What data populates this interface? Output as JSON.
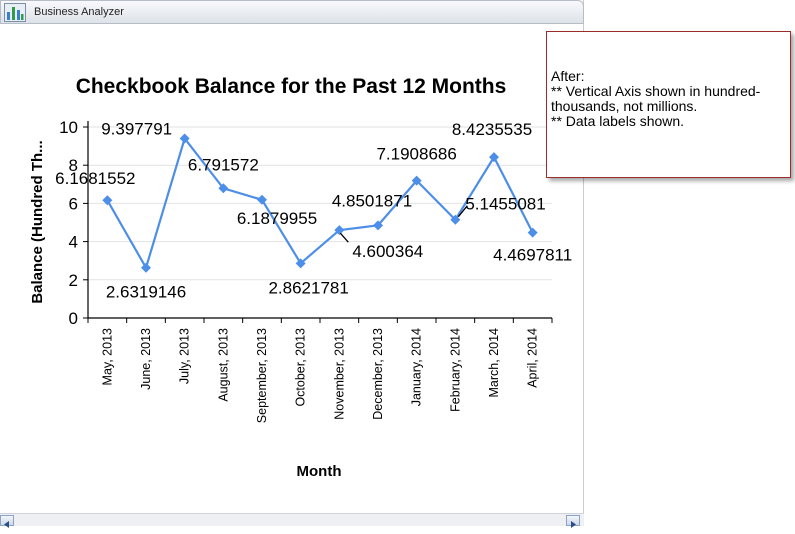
{
  "window": {
    "title": "Business Analyzer",
    "icon": "bar-chart-icon"
  },
  "note": {
    "lines": [
      "After:",
      "** Vertical Axis shown in hundred-thousands, not millions.",
      "** Data labels shown."
    ]
  },
  "chart_data": {
    "type": "line",
    "title": "Checkbook Balance for the Past 12 Months",
    "xlabel": "Month",
    "ylabel": "Balance (Hundred Th...",
    "categories": [
      "May, 2013",
      "June, 2013",
      "July, 2013",
      "August, 2013",
      "September, 2013",
      "October, 2013",
      "November, 2013",
      "December, 2013",
      "January, 2014",
      "February, 2014",
      "March, 2014",
      "April, 2014"
    ],
    "values": [
      6.1681552,
      2.6319146,
      9.397791,
      6.791572,
      6.1879955,
      2.8621781,
      4.600364,
      4.8501871,
      7.1908686,
      5.1455081,
      8.4235535,
      4.4697811
    ],
    "data_labels": [
      "6.1681552",
      "2.6319146",
      "9.397791",
      "6.791572",
      "6.1879955",
      "2.8621781",
      "4.600364",
      "4.8501871",
      "7.1908686",
      "5.1455081",
      "8.4235535",
      "4.4697811"
    ],
    "ylim": [
      0,
      10
    ],
    "yticks": [
      "0",
      "2",
      "4",
      "6",
      "8",
      "10"
    ],
    "grid": true,
    "legend": "none",
    "line_color": "#4d8fe8",
    "marker": "diamond"
  }
}
